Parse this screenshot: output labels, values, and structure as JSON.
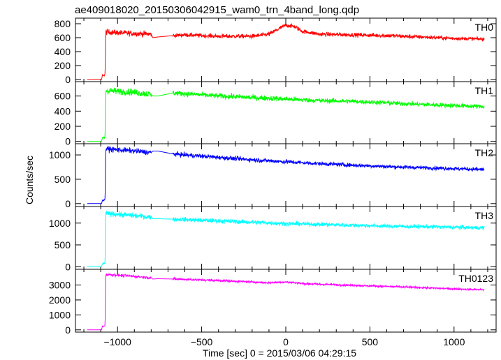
{
  "chart_data": {
    "type": "line",
    "title": "ae409018020_20150306042915_wam0_trn_4band_long.qdp",
    "xlabel": "Time [sec] 0 = 2015/03/06 04:29:15",
    "ylabel": "Counts/sec",
    "xlim": [
      -1250,
      1250
    ],
    "x_ticks": [
      -1000,
      -500,
      0,
      500,
      1000
    ],
    "x_tick_labels": [
      "−1000",
      "−500",
      "0",
      "500",
      "1000"
    ],
    "grid": false,
    "panels": [
      {
        "name": "TH0",
        "color": "#ff0000",
        "ylim": [
          -30,
          880
        ],
        "y_ticks": [
          0,
          200,
          400,
          600,
          800
        ],
        "x": [
          -1180,
          -1095,
          -1090,
          -1078,
          -1074,
          -1070,
          -1060,
          -900,
          -800,
          -790,
          -760,
          -670,
          -600,
          -400,
          -200,
          -100,
          0,
          50,
          100,
          200,
          400,
          600,
          800,
          1000,
          1180
        ],
        "y": [
          0,
          0,
          60,
          60,
          80,
          680,
          680,
          660,
          650,
          600,
          610,
          630,
          640,
          620,
          620,
          650,
          780,
          760,
          690,
          650,
          640,
          630,
          610,
          590,
          580
        ],
        "noise": [
          0,
          0,
          10,
          10,
          10,
          40,
          40,
          40,
          40,
          0,
          0,
          30,
          30,
          30,
          30,
          30,
          30,
          30,
          30,
          30,
          30,
          30,
          30,
          25,
          25
        ],
        "gaps": [
          [
            -800,
            -670
          ]
        ]
      },
      {
        "name": "TH1",
        "color": "#00ff00",
        "ylim": [
          -30,
          790
        ],
        "y_ticks": [
          0,
          200,
          400,
          600
        ],
        "x": [
          -1180,
          -1095,
          -1090,
          -1078,
          -1074,
          -1070,
          -1060,
          -900,
          -800,
          -790,
          -760,
          -670,
          -600,
          -400,
          -200,
          0,
          200,
          400,
          600,
          800,
          1000,
          1180
        ],
        "y": [
          0,
          0,
          50,
          50,
          70,
          670,
          670,
          650,
          620,
          600,
          600,
          640,
          630,
          600,
          580,
          560,
          540,
          530,
          510,
          490,
          475,
          460
        ],
        "noise": [
          0,
          0,
          10,
          10,
          10,
          45,
          45,
          45,
          45,
          0,
          0,
          35,
          35,
          35,
          35,
          35,
          30,
          30,
          30,
          30,
          30,
          30
        ],
        "gaps": [
          [
            -800,
            -670
          ]
        ]
      },
      {
        "name": "TH2",
        "color": "#0000ff",
        "ylim": [
          -60,
          1230
        ],
        "y_ticks": [
          0,
          500,
          1000
        ],
        "x": [
          -1180,
          -1095,
          -1090,
          -1078,
          -1074,
          -1070,
          -1060,
          -900,
          -800,
          -790,
          -760,
          -670,
          -600,
          -400,
          -200,
          0,
          200,
          400,
          600,
          800,
          1000,
          1180
        ],
        "y": [
          0,
          0,
          70,
          70,
          100,
          1120,
          1120,
          1080,
          1050,
          1080,
          1080,
          1020,
          1000,
          950,
          900,
          860,
          820,
          790,
          760,
          740,
          720,
          700
        ],
        "noise": [
          0,
          0,
          15,
          15,
          15,
          55,
          55,
          55,
          55,
          0,
          0,
          45,
          45,
          45,
          45,
          45,
          40,
          40,
          40,
          40,
          40,
          40
        ],
        "gaps": [
          [
            -800,
            -670
          ]
        ]
      },
      {
        "name": "TH3",
        "color": "#00ffff",
        "ylim": [
          -60,
          1380
        ],
        "y_ticks": [
          0,
          500,
          1000
        ],
        "x": [
          -1180,
          -1095,
          -1090,
          -1078,
          -1074,
          -1070,
          -1060,
          -900,
          -800,
          -790,
          -760,
          -670,
          -600,
          -400,
          -200,
          0,
          200,
          400,
          600,
          800,
          1000,
          1180
        ],
        "y": [
          0,
          0,
          70,
          70,
          100,
          1220,
          1220,
          1170,
          1140,
          1100,
          1100,
          1090,
          1080,
          1050,
          1020,
          990,
          970,
          950,
          930,
          920,
          905,
          890
        ],
        "noise": [
          0,
          0,
          15,
          15,
          15,
          60,
          60,
          60,
          60,
          0,
          0,
          50,
          50,
          50,
          50,
          50,
          45,
          45,
          45,
          45,
          45,
          45
        ],
        "gaps": [
          [
            -800,
            -670
          ]
        ]
      },
      {
        "name": "TH0123",
        "color": "#ff00ff",
        "ylim": [
          -150,
          4050
        ],
        "y_ticks": [
          0,
          1000,
          2000,
          3000
        ],
        "x": [
          -1180,
          -1095,
          -1090,
          -1078,
          -1074,
          -1070,
          -1060,
          -900,
          -800,
          -790,
          -760,
          -670,
          -600,
          -400,
          -200,
          -100,
          0,
          50,
          100,
          200,
          400,
          600,
          800,
          1000,
          1180
        ],
        "y": [
          0,
          0,
          250,
          250,
          300,
          3700,
          3700,
          3580,
          3480,
          3400,
          3420,
          3400,
          3380,
          3300,
          3200,
          3150,
          3200,
          3160,
          3100,
          3050,
          2980,
          2900,
          2830,
          2740,
          2680
        ],
        "noise": [
          0,
          0,
          20,
          20,
          20,
          90,
          90,
          90,
          90,
          0,
          0,
          70,
          70,
          70,
          70,
          70,
          70,
          70,
          70,
          70,
          65,
          65,
          65,
          60,
          60
        ],
        "gaps": [
          [
            -800,
            -670
          ]
        ]
      }
    ]
  }
}
